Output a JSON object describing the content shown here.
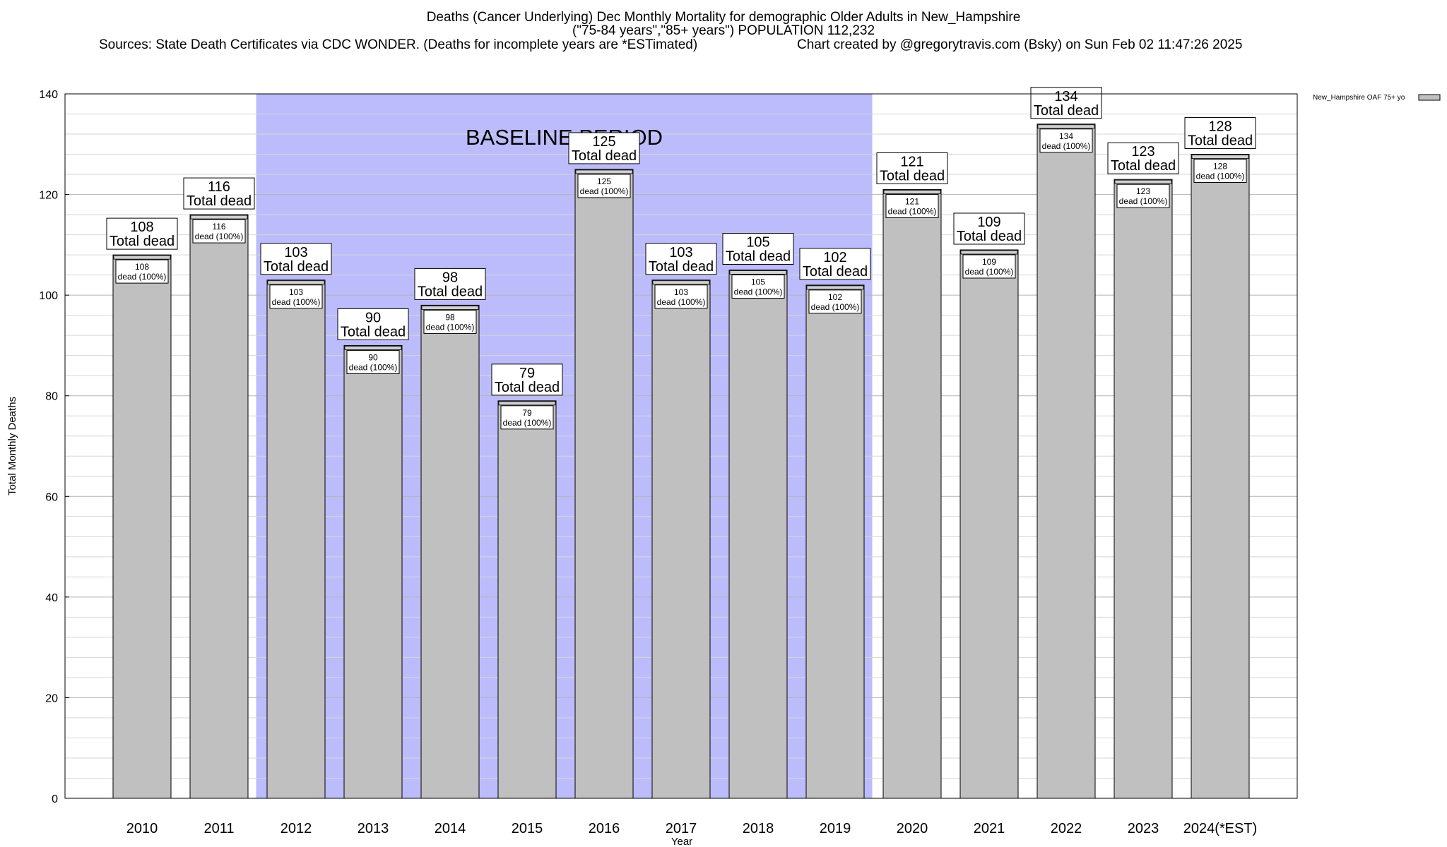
{
  "title": {
    "line1": "Deaths (Cancer Underlying) Dec Monthly Mortality for demographic Older Adults in New_Hampshire",
    "line2": "(\"75-84 years\",\"85+ years\") POPULATION 112,232",
    "sources": "Sources: State Death Certificates via CDC WONDER. (Deaths for incomplete years are *ESTimated)",
    "credit": "Chart created by @gregorytravis.com (Bsky) on Sun Feb 02 11:47:26 2025"
  },
  "chart_data": {
    "type": "bar",
    "categories": [
      "2010",
      "2011",
      "2012",
      "2013",
      "2014",
      "2015",
      "2016",
      "2017",
      "2018",
      "2019",
      "2020",
      "2021",
      "2022",
      "2023",
      "2024(*EST)"
    ],
    "series": [
      {
        "name": "New_Hampshire OAF 75+ yo",
        "values": [
          108,
          116,
          103,
          90,
          98,
          79,
          125,
          103,
          105,
          102,
          121,
          109,
          134,
          123,
          128
        ]
      }
    ],
    "xlabel": "Year",
    "ylabel": "Total Monthly Deaths",
    "ylim": [
      0,
      140
    ],
    "yticks": [
      0,
      20,
      40,
      60,
      80,
      100,
      120,
      140
    ],
    "grid": true,
    "legend_position": "top-right",
    "total_label_suffix": "Total dead",
    "inner_label_suffix": "dead (100%)",
    "baseline_period": {
      "label": "BASELINE PERIOD",
      "start": "2012",
      "end": "2019"
    },
    "colors": {
      "bar": "#c0c0c0",
      "baseline_fill": "#bcbcfc",
      "grid": "#c8c8c8"
    }
  }
}
